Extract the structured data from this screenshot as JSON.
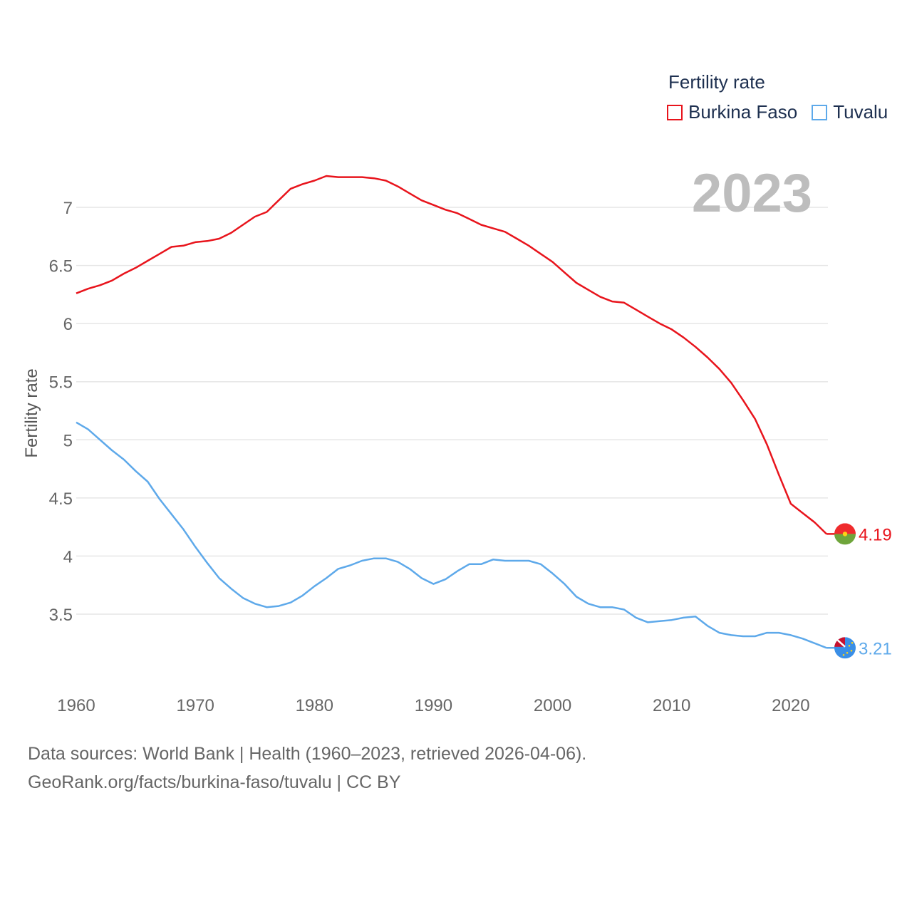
{
  "legend": {
    "title": "Fertility rate",
    "items": [
      {
        "label": "Burkina Faso",
        "color": "#e8141c"
      },
      {
        "label": "Tuvalu",
        "color": "#5ea9ea"
      }
    ]
  },
  "year_label": "2023",
  "footer": {
    "line1": "Data sources: World Bank | Health (1960–2023, retrieved 2026-04-06).",
    "line2": "GeoRank.org/facts/burkina-faso/tuvalu | CC BY"
  },
  "chart_data": {
    "type": "line",
    "ylabel": "Fertility rate",
    "xlabel": "",
    "xlim": [
      1960,
      2023
    ],
    "ylim": [
      3.0,
      7.3
    ],
    "x_ticks": [
      1960,
      1970,
      1980,
      1990,
      2000,
      2010,
      2020
    ],
    "y_ticks": [
      3.5,
      4,
      4.5,
      5,
      5.5,
      6,
      6.5,
      7
    ],
    "y_tick_labels": [
      "3.5",
      "4",
      "4.5",
      "5",
      "5.5",
      "6",
      "6.5",
      "7"
    ],
    "x": [
      1960,
      1961,
      1962,
      1963,
      1964,
      1965,
      1966,
      1967,
      1968,
      1969,
      1970,
      1971,
      1972,
      1973,
      1974,
      1975,
      1976,
      1977,
      1978,
      1979,
      1980,
      1981,
      1982,
      1983,
      1984,
      1985,
      1986,
      1987,
      1988,
      1989,
      1990,
      1991,
      1992,
      1993,
      1994,
      1995,
      1996,
      1997,
      1998,
      1999,
      2000,
      2001,
      2002,
      2003,
      2004,
      2005,
      2006,
      2007,
      2008,
      2009,
      2010,
      2011,
      2012,
      2013,
      2014,
      2015,
      2016,
      2017,
      2018,
      2019,
      2020,
      2021,
      2022,
      2023
    ],
    "series": [
      {
        "name": "Burkina Faso",
        "color": "#e8141c",
        "end_label": "4.19",
        "values": [
          6.26,
          6.3,
          6.33,
          6.37,
          6.43,
          6.48,
          6.54,
          6.6,
          6.66,
          6.67,
          6.7,
          6.71,
          6.73,
          6.78,
          6.85,
          6.92,
          6.96,
          7.06,
          7.16,
          7.2,
          7.23,
          7.27,
          7.26,
          7.26,
          7.26,
          7.25,
          7.23,
          7.18,
          7.12,
          7.06,
          7.02,
          6.98,
          6.95,
          6.9,
          6.85,
          6.82,
          6.79,
          6.73,
          6.67,
          6.6,
          6.53,
          6.44,
          6.35,
          6.29,
          6.23,
          6.19,
          6.18,
          6.12,
          6.06,
          6.0,
          5.95,
          5.88,
          5.8,
          5.71,
          5.61,
          5.49,
          5.34,
          5.18,
          4.96,
          4.7,
          4.45,
          4.37,
          4.29,
          4.19
        ]
      },
      {
        "name": "Tuvalu",
        "color": "#5ea9ea",
        "end_label": "3.21",
        "values": [
          5.15,
          5.09,
          5.0,
          4.91,
          4.83,
          4.73,
          4.64,
          4.49,
          4.36,
          4.23,
          4.08,
          3.94,
          3.81,
          3.72,
          3.64,
          3.59,
          3.56,
          3.57,
          3.6,
          3.66,
          3.74,
          3.81,
          3.89,
          3.92,
          3.96,
          3.98,
          3.98,
          3.95,
          3.89,
          3.81,
          3.76,
          3.8,
          3.87,
          3.93,
          3.93,
          3.97,
          3.96,
          3.96,
          3.96,
          3.93,
          3.85,
          3.76,
          3.65,
          3.59,
          3.56,
          3.56,
          3.54,
          3.47,
          3.43,
          3.44,
          3.45,
          3.47,
          3.48,
          3.4,
          3.34,
          3.32,
          3.31,
          3.31,
          3.34,
          3.34,
          3.32,
          3.29,
          3.25,
          3.21
        ]
      }
    ]
  }
}
